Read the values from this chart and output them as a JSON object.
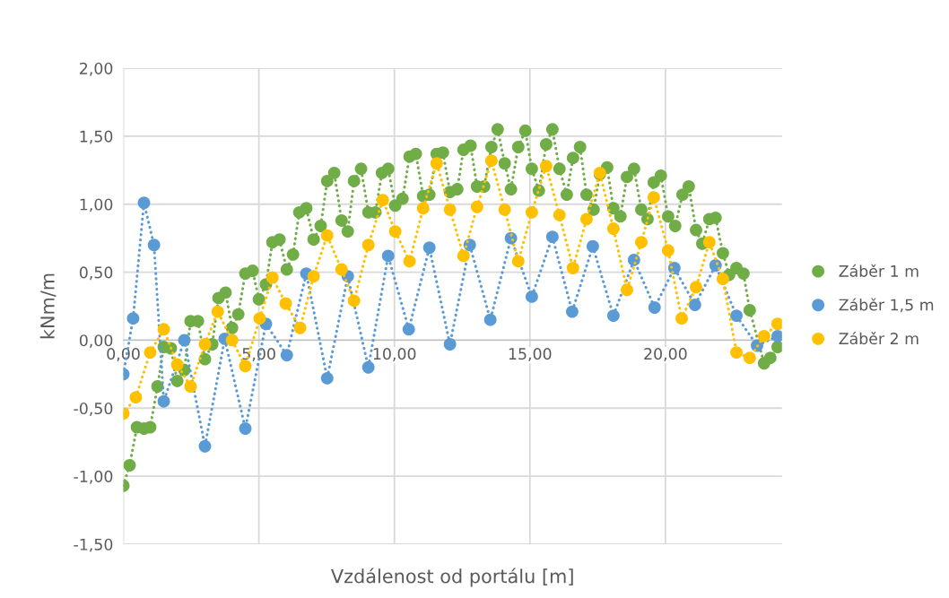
{
  "chart_data": {
    "type": "line",
    "xlabel": "Vzdálenost od portálu [m]",
    "ylabel": "kNm/m",
    "xlim": [
      0,
      24.3
    ],
    "ylim": [
      -1.5,
      2
    ],
    "xticks": [
      {
        "value": 0,
        "label": "0,00"
      },
      {
        "value": 5,
        "label": "5,00"
      },
      {
        "value": 10,
        "label": "10,00"
      },
      {
        "value": 15,
        "label": "15,00"
      },
      {
        "value": 20,
        "label": "20,00"
      }
    ],
    "yticks": [
      {
        "value": -1.5,
        "label": "-1,50"
      },
      {
        "value": -1,
        "label": "-1,00"
      },
      {
        "value": -0.5,
        "label": "-0,50"
      },
      {
        "value": 0,
        "label": "0,00"
      },
      {
        "value": 0.5,
        "label": "0,50"
      },
      {
        "value": 1,
        "label": "1,00"
      },
      {
        "value": 1.5,
        "label": "1,50"
      },
      {
        "value": 2,
        "label": "2,00"
      }
    ],
    "grid": true,
    "legend": "right",
    "marker": "circle",
    "line_style": "dotted",
    "series": [
      {
        "name": "Záběr 1 m",
        "color": "#70ad47",
        "x": [
          0,
          0.23,
          0.5,
          0.76,
          0.99,
          1.26,
          1.49,
          1.75,
          1.99,
          2.25,
          2.48,
          2.75,
          3.01,
          3.28,
          3.51,
          3.77,
          4.01,
          4.24,
          4.5,
          4.77,
          5.0,
          5.26,
          5.5,
          5.76,
          6.03,
          6.26,
          6.49,
          6.75,
          7.02,
          7.28,
          7.52,
          7.78,
          8.05,
          8.28,
          8.51,
          8.77,
          9.04,
          9.3,
          9.54,
          9.77,
          10.03,
          10.3,
          10.56,
          10.79,
          11.06,
          11.29,
          11.56,
          11.79,
          12.05,
          12.32,
          12.55,
          12.81,
          13.05,
          13.31,
          13.58,
          13.81,
          14.07,
          14.3,
          14.57,
          14.83,
          15.07,
          15.33,
          15.6,
          15.83,
          16.09,
          16.36,
          16.59,
          16.85,
          17.09,
          17.35,
          17.58,
          17.85,
          18.08,
          18.34,
          18.58,
          18.84,
          19.11,
          19.34,
          19.57,
          19.83,
          20.1,
          20.36,
          20.63,
          20.86,
          21.13,
          21.36,
          21.62,
          21.85,
          22.12,
          22.35,
          22.62,
          22.88,
          23.11,
          23.64,
          23.87,
          24.14
        ],
        "values": [
          -1.07,
          -0.92,
          -0.64,
          -0.65,
          -0.64,
          -0.34,
          -0.05,
          -0.06,
          -0.3,
          -0.22,
          0.14,
          0.14,
          -0.14,
          -0.03,
          0.31,
          0.35,
          0.09,
          0.19,
          0.49,
          0.51,
          0.3,
          0.41,
          0.72,
          0.74,
          0.52,
          0.63,
          0.94,
          0.97,
          0.74,
          0.84,
          1.17,
          1.23,
          0.88,
          0.8,
          1.17,
          1.26,
          0.94,
          0.94,
          1.23,
          1.26,
          0.99,
          1.04,
          1.35,
          1.37,
          1.06,
          1.07,
          1.37,
          1.38,
          1.09,
          1.11,
          1.4,
          1.43,
          1.13,
          1.13,
          1.42,
          1.55,
          1.3,
          1.11,
          1.42,
          1.54,
          1.26,
          1.1,
          1.44,
          1.55,
          1.26,
          1.07,
          1.34,
          1.42,
          1.07,
          0.96,
          1.22,
          1.27,
          0.97,
          0.91,
          1.2,
          1.26,
          0.96,
          0.89,
          1.16,
          1.21,
          0.91,
          0.84,
          1.07,
          1.13,
          0.81,
          0.71,
          0.89,
          0.9,
          0.64,
          0.48,
          0.53,
          0.49,
          0.22,
          -0.17,
          -0.13,
          -0.05
        ]
      },
      {
        "name": "Záběr 1,5 m",
        "color": "#5b9bd5",
        "x": [
          0,
          0.36,
          0.76,
          1.13,
          1.49,
          2.25,
          3.01,
          3.74,
          4.5,
          5.26,
          6.03,
          6.75,
          7.52,
          8.28,
          9.04,
          9.77,
          10.53,
          11.29,
          12.05,
          12.78,
          13.54,
          14.3,
          15.07,
          15.83,
          16.56,
          17.32,
          18.08,
          18.84,
          19.6,
          20.33,
          21.09,
          21.85,
          22.62,
          23.38,
          24.14
        ],
        "values": [
          -0.25,
          0.16,
          1.01,
          0.7,
          -0.45,
          0.0,
          -0.78,
          0.01,
          -0.65,
          0.12,
          -0.11,
          0.49,
          -0.28,
          0.47,
          -0.2,
          0.62,
          0.08,
          0.68,
          -0.03,
          0.7,
          0.15,
          0.75,
          0.32,
          0.76,
          0.21,
          0.69,
          0.18,
          0.59,
          0.24,
          0.53,
          0.26,
          0.55,
          0.18,
          -0.04,
          0.03
        ]
      },
      {
        "name": "Záběr 2 m",
        "color": "#ffc000",
        "x": [
          0,
          0.46,
          0.99,
          1.49,
          1.99,
          2.48,
          3.01,
          3.48,
          4.01,
          4.5,
          5.03,
          5.5,
          5.99,
          6.52,
          7.02,
          7.52,
          8.05,
          8.51,
          9.04,
          9.57,
          10.03,
          10.56,
          11.06,
          11.56,
          12.05,
          12.55,
          13.05,
          13.58,
          14.07,
          14.57,
          15.07,
          15.6,
          16.09,
          16.59,
          17.09,
          17.58,
          18.08,
          18.58,
          19.11,
          19.57,
          20.1,
          20.6,
          21.13,
          21.62,
          22.12,
          22.62,
          23.11,
          23.64,
          24.14
        ],
        "values": [
          -0.54,
          -0.42,
          -0.09,
          0.08,
          -0.18,
          -0.34,
          -0.03,
          0.21,
          0.0,
          -0.19,
          0.16,
          0.46,
          0.27,
          0.09,
          0.47,
          0.77,
          0.52,
          0.29,
          0.7,
          1.03,
          0.8,
          0.58,
          0.97,
          1.3,
          0.96,
          0.62,
          0.98,
          1.32,
          0.96,
          0.58,
          0.94,
          1.28,
          0.92,
          0.53,
          0.89,
          1.23,
          0.82,
          0.37,
          0.72,
          1.05,
          0.66,
          0.16,
          0.39,
          0.72,
          0.45,
          -0.09,
          -0.13,
          0.03,
          0.12
        ]
      }
    ]
  }
}
